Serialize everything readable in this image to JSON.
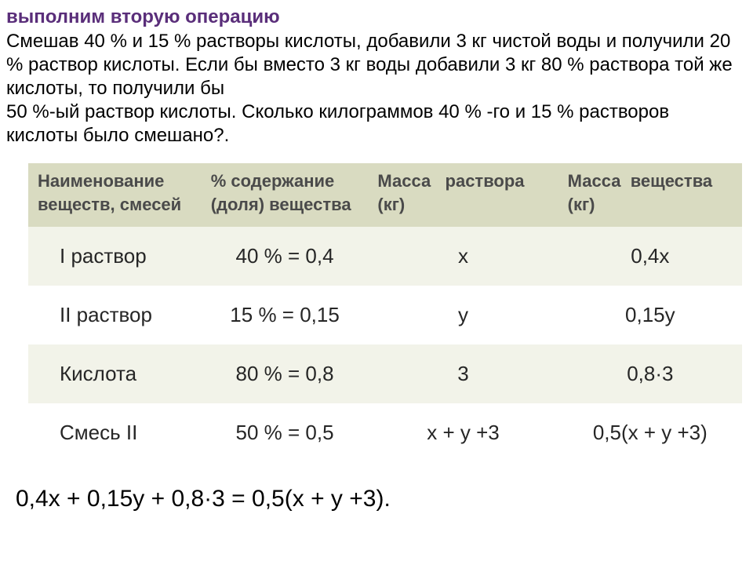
{
  "title": "выполним вторую операцию",
  "problem_text": "  Смешав 40 % и 15 % растворы кислоты, добавили 3 кг чистой воды и получили 20 % раствор кислоты. Если бы вместо 3 кг воды добавили 3 кг 80 % раствора той же кислоты, то получили бы\n50 %-ый раствор кислоты. Сколько килограммов 40 % -го и 15 % растворов кислоты было смешано?.",
  "table": {
    "columns": [
      "Наименование веществ, смесей",
      "% содержание (доля) вещества",
      "Масса раствора (кг)",
      "Масса вещества (кг)"
    ],
    "col_header_colors": {
      "bg": "#d9dbc1",
      "text": "#4a4a4a"
    },
    "row_colors": {
      "odd": "#f2f3e9",
      "even": "#ffffff"
    },
    "rows": [
      [
        "I раствор",
        "40 % = 0,4",
        "x",
        "0,4x"
      ],
      [
        "II раствор",
        "15 % = 0,15",
        "y",
        "0,15y"
      ],
      [
        "Кислота",
        "80 % = 0,8",
        "3",
        "0,8·3"
      ],
      [
        "Смесь II",
        "50 % = 0,5",
        "x + y +3",
        "0,5(x + y +3)"
      ]
    ]
  },
  "equation": "0,4x + 0,15y + 0,8·3 = 0,5(x + y +3).",
  "styling": {
    "title_color": "#5a2e7a",
    "title_fontsize": 24,
    "body_fontsize": 24,
    "table_header_fontsize": 22,
    "table_cell_fontsize": 26,
    "equation_fontsize": 30,
    "background_color": "#ffffff"
  }
}
